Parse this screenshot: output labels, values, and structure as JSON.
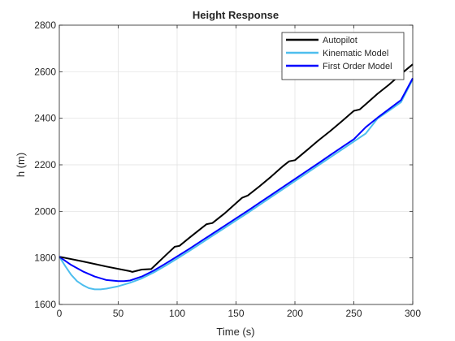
{
  "chart_data": {
    "type": "line",
    "title": "Height Response",
    "xlabel": "Time (s)",
    "ylabel": "h (m)",
    "xlim": [
      0,
      300
    ],
    "ylim": [
      1600,
      2800
    ],
    "xticks": [
      0,
      50,
      100,
      150,
      200,
      250,
      300
    ],
    "yticks": [
      1600,
      1800,
      2000,
      2200,
      2400,
      2600,
      2800
    ],
    "xtick_labels": [
      "0",
      "50",
      "100",
      "150",
      "200",
      "250",
      "300"
    ],
    "ytick_labels": [
      "1600",
      "1800",
      "2000",
      "2200",
      "2400",
      "2600",
      "2800"
    ],
    "grid": true,
    "legend_position": "top-right",
    "series": [
      {
        "name": "Autopilot",
        "color": "#000000",
        "points": [
          [
            0,
            1805
          ],
          [
            20,
            1785
          ],
          [
            40,
            1763
          ],
          [
            60,
            1743
          ],
          [
            62,
            1740
          ],
          [
            70,
            1750
          ],
          [
            78,
            1752
          ],
          [
            80,
            1762
          ],
          [
            90,
            1810
          ],
          [
            98,
            1848
          ],
          [
            102,
            1852
          ],
          [
            110,
            1885
          ],
          [
            120,
            1925
          ],
          [
            125,
            1945
          ],
          [
            130,
            1950
          ],
          [
            140,
            1990
          ],
          [
            150,
            2035
          ],
          [
            155,
            2058
          ],
          [
            160,
            2068
          ],
          [
            170,
            2108
          ],
          [
            180,
            2150
          ],
          [
            190,
            2195
          ],
          [
            195,
            2215
          ],
          [
            200,
            2220
          ],
          [
            210,
            2262
          ],
          [
            220,
            2305
          ],
          [
            230,
            2345
          ],
          [
            240,
            2388
          ],
          [
            250,
            2432
          ],
          [
            255,
            2438
          ],
          [
            260,
            2460
          ],
          [
            270,
            2505
          ],
          [
            280,
            2545
          ],
          [
            290,
            2590
          ],
          [
            300,
            2632
          ]
        ]
      },
      {
        "name": "Kinematic Model",
        "color": "#4DBEEE",
        "points": [
          [
            0,
            1805
          ],
          [
            5,
            1765
          ],
          [
            10,
            1728
          ],
          [
            15,
            1700
          ],
          [
            20,
            1683
          ],
          [
            25,
            1670
          ],
          [
            30,
            1665
          ],
          [
            35,
            1665
          ],
          [
            40,
            1668
          ],
          [
            50,
            1678
          ],
          [
            60,
            1693
          ],
          [
            70,
            1712
          ],
          [
            80,
            1737
          ],
          [
            90,
            1766
          ],
          [
            100,
            1797
          ],
          [
            110,
            1829
          ],
          [
            120,
            1862
          ],
          [
            130,
            1895
          ],
          [
            140,
            1928
          ],
          [
            150,
            1961
          ],
          [
            160,
            1994
          ],
          [
            170,
            2028
          ],
          [
            180,
            2062
          ],
          [
            190,
            2096
          ],
          [
            200,
            2130
          ],
          [
            210,
            2164
          ],
          [
            220,
            2198
          ],
          [
            230,
            2232
          ],
          [
            240,
            2266
          ],
          [
            250,
            2300
          ],
          [
            260,
            2334
          ],
          [
            270,
            2398
          ],
          [
            280,
            2433
          ],
          [
            290,
            2469
          ],
          [
            300,
            2567
          ]
        ]
      },
      {
        "name": "First Order Model",
        "color": "#0000FF",
        "points": [
          [
            0,
            1805
          ],
          [
            10,
            1770
          ],
          [
            20,
            1742
          ],
          [
            30,
            1720
          ],
          [
            40,
            1705
          ],
          [
            50,
            1700
          ],
          [
            55,
            1700
          ],
          [
            60,
            1703
          ],
          [
            70,
            1720
          ],
          [
            80,
            1745
          ],
          [
            90,
            1775
          ],
          [
            100,
            1806
          ],
          [
            110,
            1838
          ],
          [
            120,
            1871
          ],
          [
            130,
            1904
          ],
          [
            140,
            1937
          ],
          [
            150,
            1970
          ],
          [
            160,
            2003
          ],
          [
            170,
            2037
          ],
          [
            180,
            2071
          ],
          [
            190,
            2105
          ],
          [
            200,
            2139
          ],
          [
            210,
            2173
          ],
          [
            220,
            2207
          ],
          [
            230,
            2242
          ],
          [
            240,
            2276
          ],
          [
            250,
            2310
          ],
          [
            260,
            2361
          ],
          [
            270,
            2402
          ],
          [
            280,
            2440
          ],
          [
            290,
            2478
          ],
          [
            300,
            2572
          ]
        ]
      }
    ]
  }
}
